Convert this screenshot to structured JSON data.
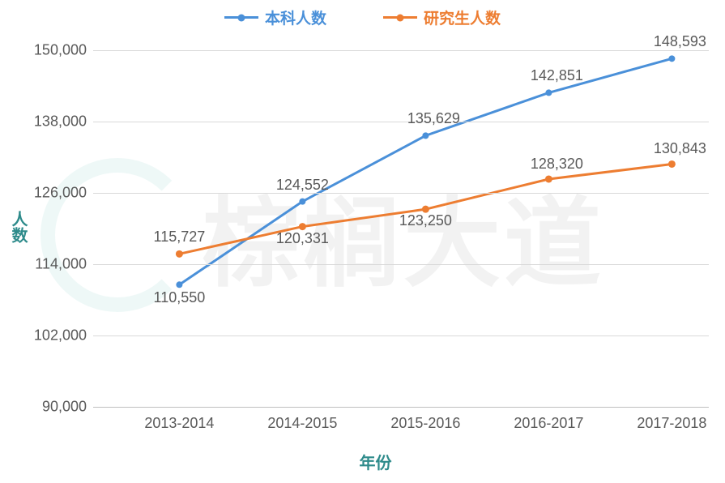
{
  "chart": {
    "type": "line",
    "background_color": "#ffffff",
    "grid_color": "#d9d9d9",
    "axis_line_color": "#bfbfbf",
    "legend": {
      "items": [
        {
          "label": "本科人数",
          "color": "#4a90d9"
        },
        {
          "label": "研究生人数",
          "color": "#ed7d31"
        }
      ]
    },
    "y_axis": {
      "title": "人数",
      "title_color": "#2e8b8b",
      "min": 90000,
      "max": 150000,
      "tick_step": 12000,
      "ticks": [
        "90,000",
        "102,000",
        "114,000",
        "126,000",
        "138,000",
        "150,000"
      ],
      "tick_color": "#595959",
      "tick_fontsize": 18
    },
    "x_axis": {
      "title": "年份",
      "title_color": "#2e8b8b",
      "categories": [
        "2013-2014",
        "2014-2015",
        "2015-2016",
        "2016-2017",
        "2017-2018"
      ],
      "tick_color": "#595959",
      "tick_fontsize": 18
    },
    "series": [
      {
        "name": "本科人数",
        "color": "#4a90d9",
        "line_width": 3,
        "marker_size": 8,
        "values": [
          110550,
          124552,
          135629,
          142851,
          148593
        ],
        "labels": [
          "110,550",
          "124,552",
          "135,629",
          "142,851",
          "148,593"
        ],
        "label_color": "#595959"
      },
      {
        "name": "研究生人数",
        "color": "#ed7d31",
        "line_width": 3,
        "marker_size": 9,
        "values": [
          115727,
          120331,
          123250,
          128320,
          130843
        ],
        "labels": [
          "115,727",
          "120,331",
          "123,250",
          "128,320",
          "130,843"
        ],
        "label_color": "#595959"
      }
    ],
    "watermark": {
      "text": "棕榈大道",
      "color": "#888888",
      "opacity": 0.08
    }
  }
}
